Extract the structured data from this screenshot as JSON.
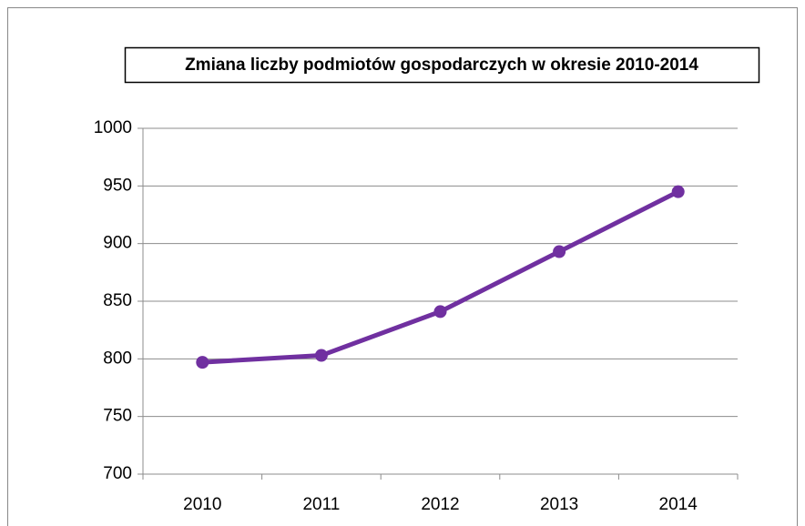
{
  "chart_data": {
    "type": "line",
    "title": "Zmiana liczby podmiotów gospodarczych  w okresie 2010-2014",
    "categories": [
      "2010",
      "2011",
      "2012",
      "2013",
      "2014"
    ],
    "series": [
      {
        "name": "",
        "color": "#7030a0",
        "values": [
          797,
          803,
          841,
          893,
          945
        ]
      }
    ],
    "ylim": [
      700,
      1000
    ],
    "yticks": [
      700,
      750,
      800,
      850,
      900,
      950,
      1000
    ],
    "grid": true
  }
}
